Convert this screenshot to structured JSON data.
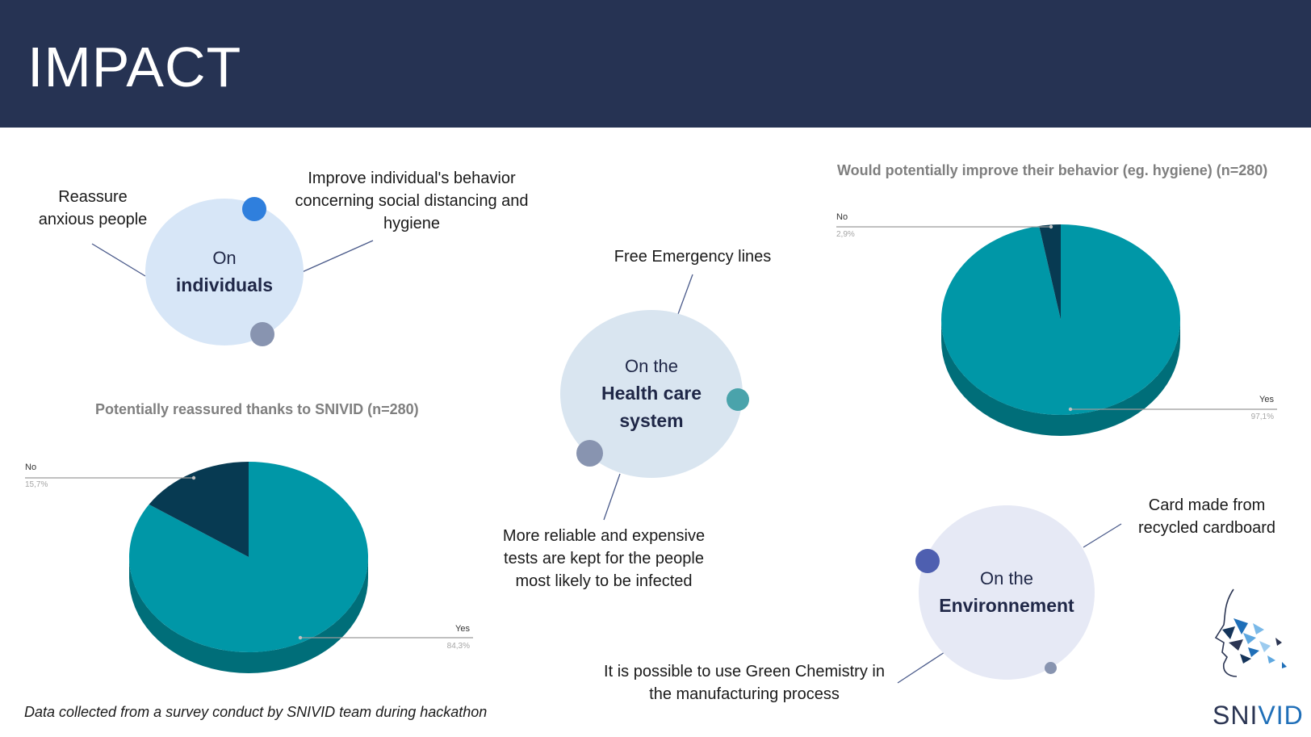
{
  "header": {
    "title": "IMPACT"
  },
  "bubbles": {
    "individuals": {
      "line1": "On",
      "strong": "individuals"
    },
    "health": {
      "line1": "On the",
      "strong": "Health care system"
    },
    "environment": {
      "line1": "On the",
      "strong": "Environnement"
    }
  },
  "labels": {
    "reassure": "Reassure anxious people",
    "improve": "Improve individual's behavior concerning social distancing and hygiene",
    "emergency": "Free Emergency lines",
    "tests": "More reliable and expensive tests are kept for the people most likely to be infected",
    "card": "Card made from recycled cardboard",
    "green": "It is possible to use Green Chemistry in the manufacturing process"
  },
  "footnote": "Data collected from a survey conduct by SNIVID team during hackathon",
  "logo": {
    "part1": "SNI",
    "part2": "VID"
  },
  "colors": {
    "header_bg": "#263353",
    "teal": "#0097a7",
    "teal_dark": "#006e79",
    "navy": "#073a52",
    "navy_dark": "#05293a",
    "bubble_individuals": "#d7e6f7",
    "bubble_health": "#d9e5f0",
    "bubble_env": "#e6e9f5",
    "dot_blue": "#2f7fdd",
    "dot_gray": "#8894b0",
    "dot_teal": "#4aa3ab",
    "dot_indigo": "#4e5fb0",
    "logo_dark": "#2b3553",
    "logo_accent": "#1f6fb8"
  },
  "chart_data": [
    {
      "type": "pie",
      "title": "Potentially reassured thanks to SNIVID (n=280)",
      "categories": [
        "Yes",
        "No"
      ],
      "values": [
        84.3,
        15.7
      ],
      "value_labels": [
        "84,3%",
        "15,7%"
      ]
    },
    {
      "type": "pie",
      "title": "Would potentially improve their behavior (eg. hygiene) (n=280)",
      "categories": [
        "Yes",
        "No"
      ],
      "values": [
        97.1,
        2.9
      ],
      "value_labels": [
        "97,1%",
        "2,9%"
      ]
    }
  ]
}
